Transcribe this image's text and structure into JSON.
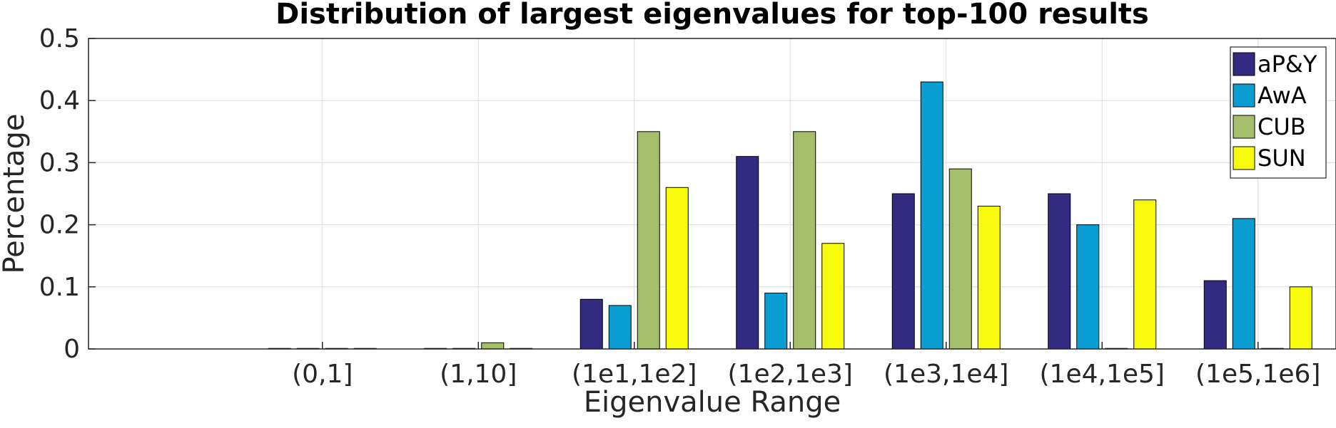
{
  "chart_data": {
    "type": "bar",
    "title": "Distribution of largest eigenvalues for top-100 results",
    "xlabel": "Eigenvalue Range",
    "ylabel": "Percentage",
    "ylim": [
      0,
      0.5
    ],
    "yticks": [
      "0",
      "0.1",
      "0.2",
      "0.3",
      "0.4",
      "0.5"
    ],
    "grid": true,
    "legend_position": "top-right",
    "categories": [
      "(0,1]",
      "(1,10]",
      "(1e1,1e2]",
      "(1e2,1e3]",
      "(1e3,1e4]",
      "(1e4,1e5]",
      "(1e5,1e6]"
    ],
    "series": [
      {
        "name": "aP&Y",
        "color": "#332a82",
        "values": [
          0,
          0,
          0.08,
          0.31,
          0.25,
          0.25,
          0.11
        ]
      },
      {
        "name": "AwA",
        "color": "#0a9dd2",
        "values": [
          0,
          0,
          0.07,
          0.09,
          0.43,
          0.2,
          0.21
        ]
      },
      {
        "name": "CUB",
        "color": "#a4be6a",
        "values": [
          0,
          0.01,
          0.35,
          0.35,
          0.29,
          0,
          0
        ]
      },
      {
        "name": "SUN",
        "color": "#f8fa0c",
        "values": [
          0,
          0,
          0.26,
          0.17,
          0.23,
          0.24,
          0.1
        ]
      }
    ]
  }
}
